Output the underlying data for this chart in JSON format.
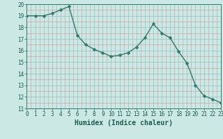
{
  "x": [
    0,
    1,
    2,
    3,
    4,
    5,
    6,
    7,
    8,
    9,
    10,
    11,
    12,
    13,
    14,
    15,
    16,
    17,
    18,
    19,
    20,
    21,
    22,
    23
  ],
  "y": [
    19.0,
    19.0,
    19.0,
    19.2,
    19.5,
    19.8,
    17.3,
    16.5,
    16.1,
    15.8,
    15.5,
    15.6,
    15.8,
    16.3,
    17.1,
    18.3,
    17.5,
    17.1,
    15.9,
    14.9,
    13.0,
    12.1,
    11.8,
    11.5
  ],
  "xlabel": "Humidex (Indice chaleur)",
  "line_color": "#2d7a6b",
  "marker": "D",
  "marker_size": 2.5,
  "bg_color": "#cce8e4",
  "major_grid_color": "#b8d8d4",
  "minor_grid_color": "#d4a0a0",
  "xlim": [
    0,
    23
  ],
  "ylim": [
    11,
    20
  ],
  "yticks": [
    11,
    12,
    13,
    14,
    15,
    16,
    17,
    18,
    19,
    20
  ],
  "xticks": [
    0,
    1,
    2,
    3,
    4,
    5,
    6,
    7,
    8,
    9,
    10,
    11,
    12,
    13,
    14,
    15,
    16,
    17,
    18,
    19,
    20,
    21,
    22,
    23
  ],
  "tick_fontsize": 5.5,
  "xlabel_fontsize": 7.0,
  "tick_color": "#1a5c50",
  "spine_color": "#2d7a6b"
}
